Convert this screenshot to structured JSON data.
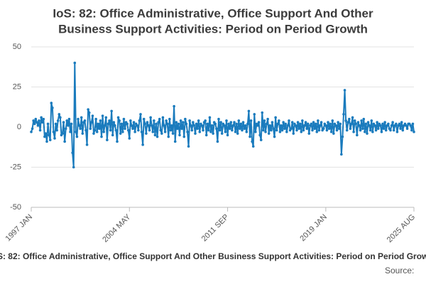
{
  "chart_data": {
    "type": "line",
    "title": "IoS: 82: Office Administrative, Office Support And Other Business Support Activities: Period on Period Growth",
    "title_lines": [
      "IoS: 82: Office Administrative, Office Support And Other",
      "Business Support Activities: Period on Period Growth"
    ],
    "source_label": "Source:",
    "color": "#1a7bbd",
    "grid": true,
    "ylim": [
      -50,
      50
    ],
    "yticks": [
      -50,
      -25,
      0,
      25,
      50
    ],
    "categories": [
      "1997 JAN",
      null,
      null,
      null,
      null,
      null,
      null,
      null,
      null,
      null,
      null,
      null,
      null,
      null,
      null,
      null,
      null,
      null,
      null,
      null,
      null,
      null,
      null,
      null,
      null,
      null,
      null,
      null,
      null,
      null,
      null,
      null,
      null,
      null,
      null,
      null,
      null,
      null,
      null,
      null,
      null,
      null,
      null,
      null,
      null,
      null,
      null,
      null,
      null,
      null,
      null,
      null,
      null,
      null,
      null,
      null,
      null,
      null,
      null,
      null,
      null,
      null,
      null,
      null,
      null,
      null,
      null,
      null,
      null,
      null,
      null,
      null,
      null,
      null,
      null,
      null,
      null,
      null,
      null,
      null,
      null,
      null,
      null,
      null,
      null,
      null,
      null,
      null,
      "2004 MAY",
      null,
      null,
      null,
      null,
      null,
      null,
      null,
      null,
      null,
      null,
      null,
      null,
      null,
      null,
      null,
      null,
      null,
      null,
      null,
      null,
      null,
      null,
      null,
      null,
      null,
      null,
      null,
      null,
      null,
      null,
      null,
      null,
      null,
      null,
      null,
      null,
      null,
      null,
      null,
      null,
      null,
      null,
      null,
      null,
      null,
      null,
      null,
      null,
      null,
      null,
      null,
      null,
      null,
      null,
      null,
      null,
      null,
      null,
      null,
      null,
      null,
      null,
      null,
      null,
      null,
      null,
      null,
      null,
      null,
      null,
      null,
      null,
      null,
      null,
      null,
      null,
      null,
      null,
      null,
      null,
      null,
      null,
      null,
      null,
      null,
      null,
      null,
      "2011 SEP",
      null,
      null,
      null,
      null,
      null,
      null,
      null,
      null,
      null,
      null,
      null,
      null,
      null,
      null,
      null,
      null,
      null,
      null,
      null,
      null,
      null,
      null,
      null,
      null,
      null,
      null,
      null,
      null,
      null,
      null,
      null,
      null,
      null,
      null,
      null,
      null,
      null,
      null,
      null,
      null,
      null,
      null,
      null,
      null,
      null,
      null,
      null,
      null,
      null,
      null,
      null,
      null,
      null,
      null,
      null,
      null,
      null,
      null,
      null,
      null,
      null,
      null,
      null,
      null,
      null,
      null,
      null,
      null,
      null,
      null,
      null,
      null,
      null,
      null,
      null,
      null,
      null,
      null,
      null,
      null,
      null,
      null,
      null,
      null,
      null,
      null,
      null,
      "2019 JAN",
      null,
      null,
      null,
      null,
      null,
      null,
      null,
      null,
      null,
      null,
      null,
      null,
      null,
      null,
      null,
      null,
      null,
      null,
      null,
      null,
      null,
      null,
      null,
      null,
      null,
      null,
      null,
      null,
      null,
      null,
      null,
      null,
      null,
      null,
      null,
      null,
      null,
      null,
      null,
      null,
      null,
      null,
      null,
      null,
      null,
      null,
      null,
      null,
      null,
      null,
      null,
      null,
      null,
      null,
      null,
      null,
      null,
      null,
      null,
      null,
      null,
      null,
      null,
      null,
      null,
      null,
      null,
      null,
      null,
      null,
      null,
      null,
      null,
      null,
      null,
      null,
      null,
      null,
      "2025 AUG"
    ],
    "values": [
      -3,
      -1,
      4,
      2,
      5,
      3,
      1,
      4,
      -2,
      6,
      3,
      5,
      -6,
      -4,
      -9,
      2,
      -5,
      -8,
      15,
      12,
      -3,
      -7,
      2,
      -2,
      4,
      8,
      6,
      -5,
      -4,
      3,
      -9,
      -1,
      4,
      1,
      5,
      -3,
      2,
      -16,
      -25,
      40,
      -3,
      -6,
      5,
      1,
      -1,
      6,
      -4,
      3,
      4,
      -2,
      -11,
      11,
      9,
      -1,
      3,
      7,
      -4,
      -2,
      5,
      -3,
      2,
      -1,
      4,
      -6,
      7,
      -3,
      1,
      6,
      -8,
      2,
      4,
      -2,
      10,
      -5,
      3,
      1,
      -2,
      -9,
      6,
      4,
      -4,
      2,
      -3,
      5,
      -1,
      3,
      2,
      -2,
      -7,
      4,
      1,
      -1,
      3,
      -3,
      2,
      1,
      -2,
      4,
      8,
      -3,
      -11,
      5,
      2,
      -4,
      3,
      1,
      -2,
      6,
      1,
      -3,
      4,
      -5,
      2,
      -6,
      3,
      5,
      -2,
      -4,
      6,
      1,
      -3,
      4,
      2,
      -6,
      5,
      -2,
      1,
      -4,
      13,
      -9,
      3,
      -1,
      2,
      -5,
      4,
      -1,
      3,
      -6,
      5,
      2,
      -3,
      -12,
      4,
      1,
      -2,
      3,
      1,
      -4,
      2,
      -1,
      4,
      -3,
      2,
      1,
      -2,
      3,
      4,
      -5,
      2,
      -2,
      6,
      -3,
      1,
      -4,
      3,
      2,
      -1,
      -9,
      5,
      -2,
      3,
      -4,
      2,
      1,
      -3,
      4,
      -5,
      2,
      -1,
      3,
      -2,
      1,
      3,
      -3,
      2,
      -4,
      4,
      -1,
      2,
      -2,
      3,
      -1,
      1,
      -3,
      2,
      10,
      -6,
      4,
      -9,
      -12,
      8,
      -3,
      2,
      1,
      3,
      -5,
      -8,
      9,
      -2,
      4,
      -3,
      2,
      5,
      -4,
      1,
      -2,
      3,
      -1,
      -6,
      6,
      -2,
      2,
      4,
      -3,
      1,
      -2,
      3,
      -1,
      2,
      -3,
      1,
      4,
      -2,
      -1,
      3,
      -4,
      2,
      1,
      -2,
      3,
      -1,
      2,
      -3,
      4,
      -2,
      1,
      3,
      -1,
      2,
      -4,
      1,
      2,
      -2,
      3,
      -1,
      2,
      -3,
      4,
      -2,
      1,
      3,
      -2,
      -1,
      2,
      1,
      -2,
      3,
      -1,
      2,
      -3,
      4,
      -4,
      2,
      1,
      -2,
      3,
      -1,
      2,
      -17,
      -6,
      8,
      23,
      4,
      -2,
      3,
      5,
      -1,
      2,
      6,
      -3,
      4,
      2,
      -5,
      3,
      1,
      -2,
      4,
      -1,
      5,
      -3,
      2,
      -4,
      3,
      1,
      -2,
      4,
      -3,
      2,
      1,
      -2,
      3,
      -1,
      2,
      1,
      -3,
      2,
      -1,
      3,
      -2,
      1,
      2,
      -1,
      -2,
      1,
      3,
      -2,
      1,
      2,
      -3,
      1,
      2,
      -1,
      3,
      -2,
      1,
      2,
      1,
      -1,
      2,
      2,
      1,
      -2,
      2,
      -3
    ]
  }
}
